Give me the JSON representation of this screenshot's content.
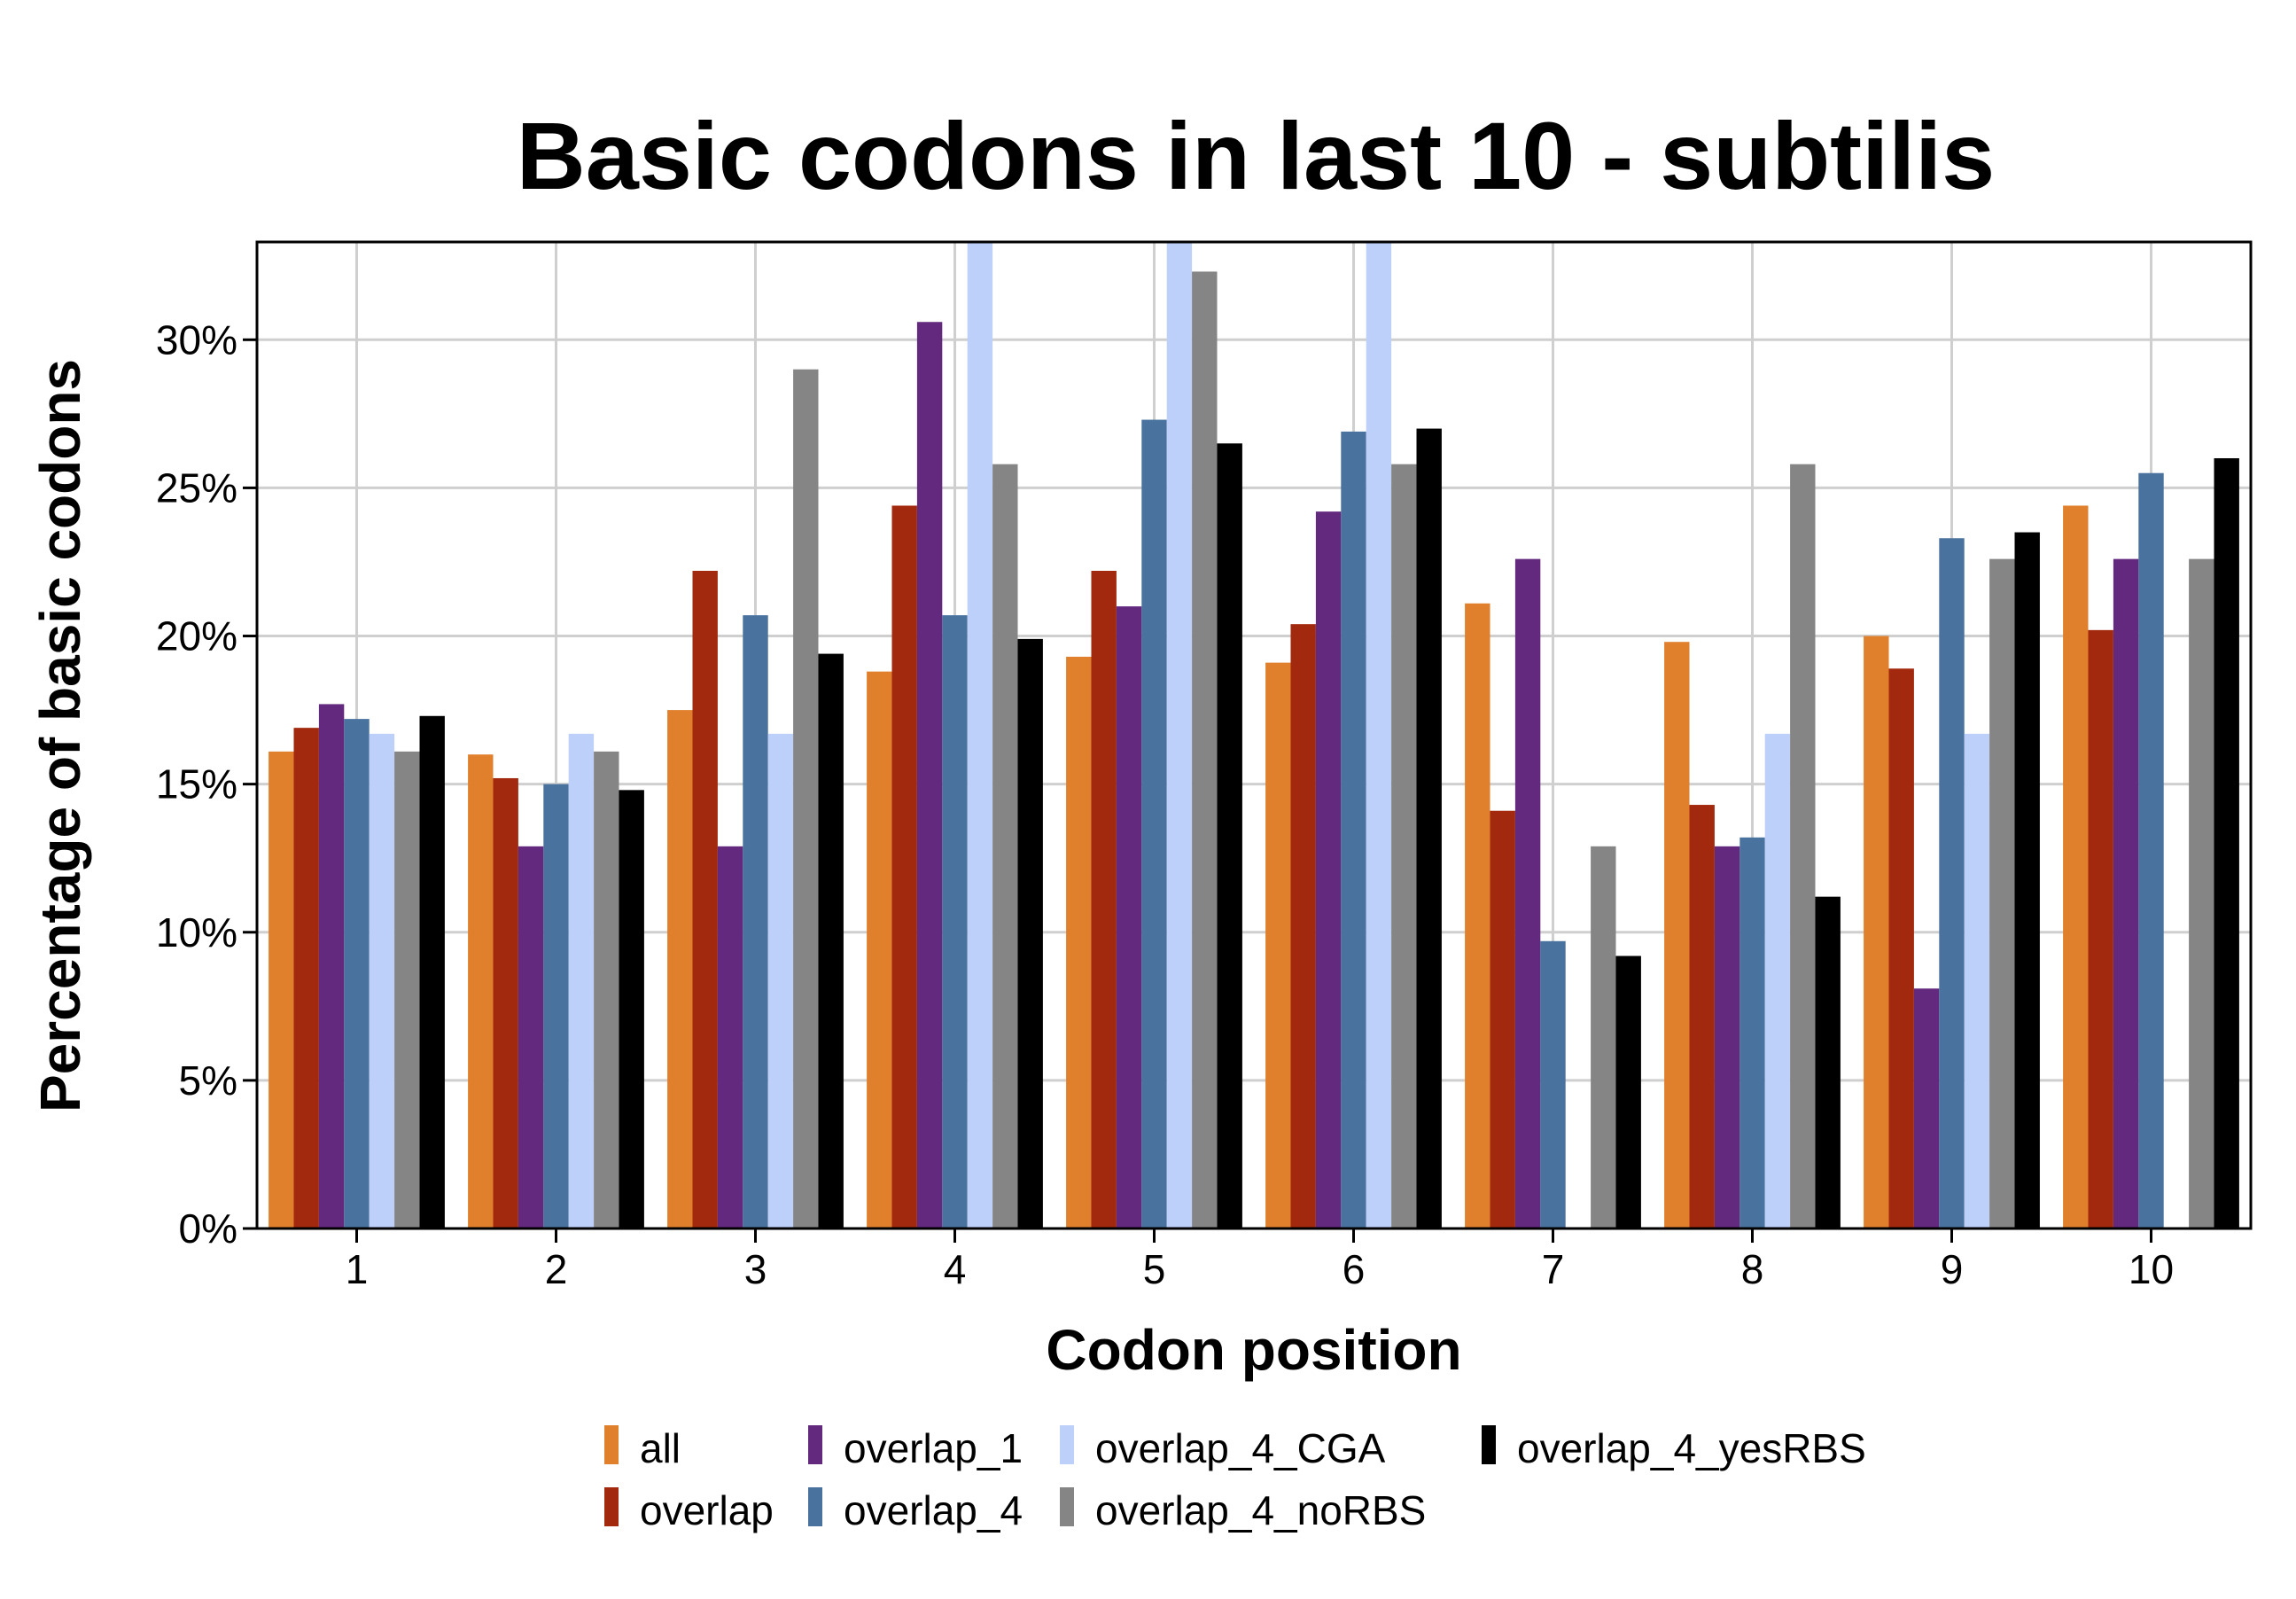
{
  "chart_data": {
    "type": "bar",
    "title": "Basic codons in last 10 - subtilis",
    "xlabel": "Codon position",
    "ylabel": "Percentage of basic codons",
    "categories": [
      "1",
      "2",
      "3",
      "4",
      "5",
      "6",
      "7",
      "8",
      "9",
      "10"
    ],
    "ylim": [
      0,
      33.3
    ],
    "yticks": [
      0,
      5,
      10,
      15,
      20,
      25,
      30
    ],
    "ytick_labels": [
      "0%",
      "5%",
      "10%",
      "15%",
      "20%",
      "25%",
      "30%"
    ],
    "grid": true,
    "legend_position": "bottom",
    "series": [
      {
        "name": "all",
        "color": "#E07F2C",
        "values": [
          16.1,
          16.0,
          17.5,
          18.8,
          19.3,
          19.1,
          21.1,
          19.8,
          20.0,
          24.4
        ]
      },
      {
        "name": "overlap",
        "color": "#A2290D",
        "values": [
          16.9,
          15.2,
          22.2,
          24.4,
          22.2,
          20.4,
          14.1,
          14.3,
          18.9,
          20.2
        ]
      },
      {
        "name": "overlap_1",
        "color": "#62297F",
        "values": [
          17.7,
          12.9,
          12.9,
          30.6,
          21.0,
          24.2,
          22.6,
          12.9,
          8.1,
          22.6
        ]
      },
      {
        "name": "overlap_4",
        "color": "#4A729E",
        "values": [
          17.2,
          15.0,
          20.7,
          20.7,
          27.3,
          26.9,
          9.7,
          13.2,
          23.3,
          25.5
        ]
      },
      {
        "name": "overlap_4_CGA",
        "color": "#BDD0F9",
        "values": [
          16.7,
          16.7,
          16.7,
          33.3,
          33.3,
          33.3,
          0,
          16.7,
          16.7,
          0
        ]
      },
      {
        "name": "overlap_4_noRBS",
        "color": "#858585",
        "values": [
          16.1,
          16.1,
          29.0,
          25.8,
          32.3,
          25.8,
          12.9,
          25.8,
          22.6,
          22.6
        ]
      },
      {
        "name": "overlap_4_yesRBS",
        "color": "#000000",
        "values": [
          17.3,
          14.8,
          19.4,
          19.9,
          26.5,
          27.0,
          9.2,
          11.2,
          23.5,
          26.0
        ]
      }
    ]
  }
}
